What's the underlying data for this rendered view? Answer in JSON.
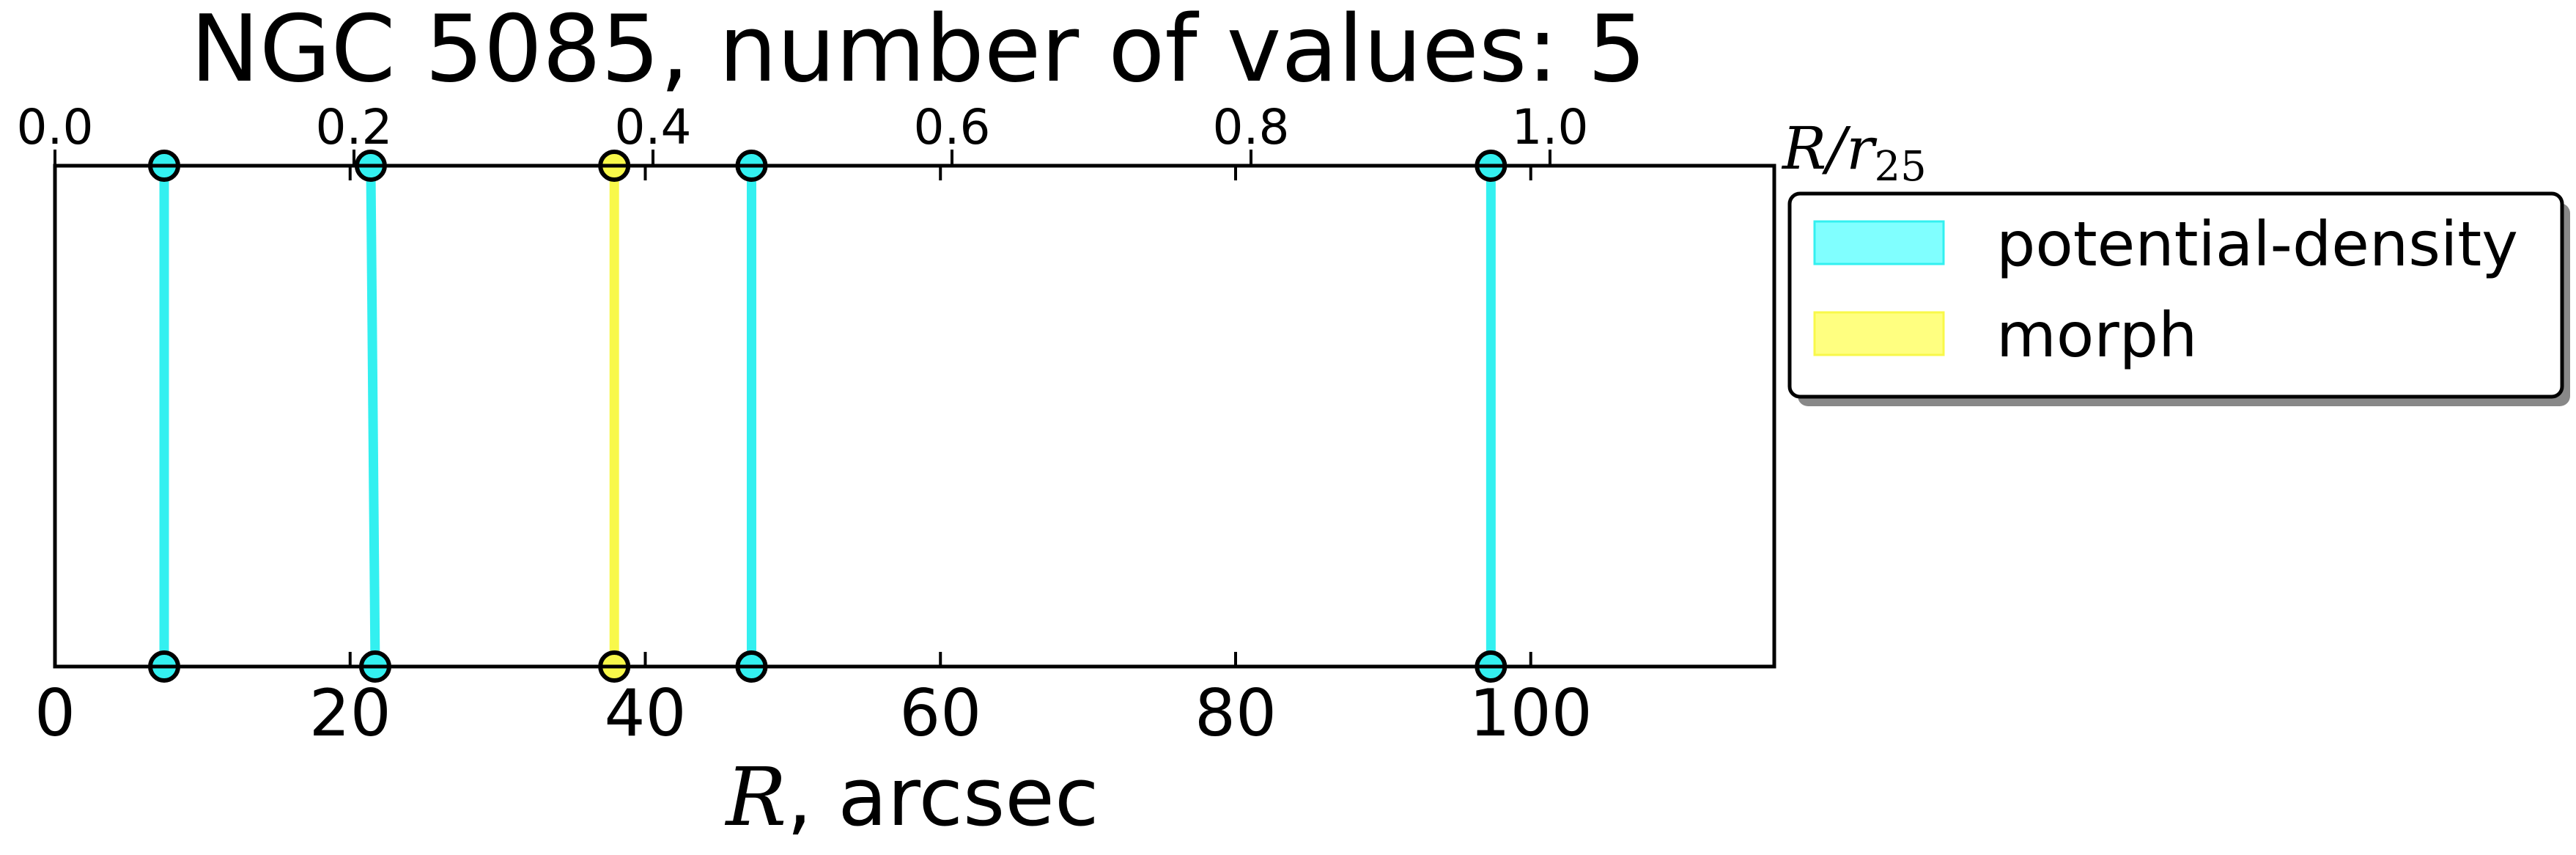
{
  "chart_data": {
    "type": "scatter",
    "title": "NGC 5085, number of values: 5",
    "xlabel_math": "R",
    "xlabel_rest": ", arcsec",
    "top_axis_label_main": "R/r",
    "top_axis_label_sub": "25",
    "xlim": [
      0,
      116.5
    ],
    "xticks": [
      0,
      20,
      40,
      60,
      80,
      100
    ],
    "xtick_labels": [
      "0",
      "20",
      "40",
      "60",
      "80",
      "100"
    ],
    "top_xlim": [
      0,
      1.15
    ],
    "top_xticks": [
      0.0,
      0.2,
      0.4,
      0.6,
      0.8,
      1.0
    ],
    "top_xtick_labels": [
      "0.0",
      "0.2",
      "0.4",
      "0.6",
      "0.8",
      "1.0"
    ],
    "series": [
      {
        "name": "potential-density",
        "color": "#33f0f0",
        "lines": [
          {
            "bottom": 7.4,
            "top": 7.4
          },
          {
            "bottom": 21.7,
            "top": 21.4
          },
          {
            "bottom": 47.2,
            "top": 47.2
          },
          {
            "bottom": 97.3,
            "top": 97.3
          }
        ]
      },
      {
        "name": "morph",
        "color": "#f8f84a",
        "lines": [
          {
            "bottom": 37.9,
            "top": 37.9
          }
        ]
      }
    ],
    "legend_position": "outside-right-top",
    "grid": false
  }
}
